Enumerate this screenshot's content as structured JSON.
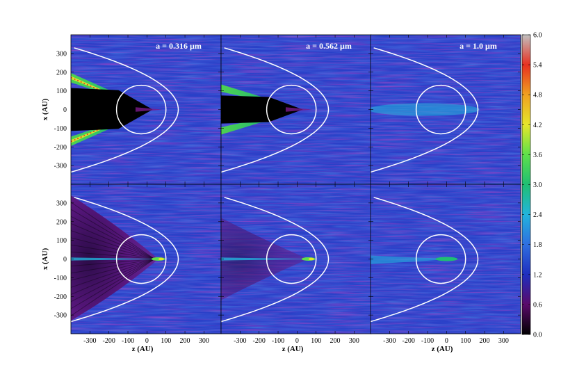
{
  "chart_data": {
    "type": "heatmap",
    "layout": "2 rows x 3 columns",
    "xlabel": "z (AU)",
    "ylabel": "x (AU)",
    "xlim": [
      -400,
      390
    ],
    "ylim": [
      -400,
      400
    ],
    "x_ticks": [
      -300,
      -200,
      -100,
      0,
      100,
      200,
      300
    ],
    "y_ticks": [
      300,
      200,
      100,
      0,
      -100,
      -200,
      -300
    ],
    "colorbar": {
      "min": 0.0,
      "max": 6.0,
      "ticks": [
        "6.0",
        "5.4",
        "4.8",
        "4.2",
        "3.6",
        "3.0",
        "2.4",
        "1.8",
        "1.2",
        "0.6",
        "0.0"
      ],
      "colors": [
        "#000000",
        "#5a0a6a",
        "#1f2fbf",
        "#2f6fe0",
        "#22b4dd",
        "#1fbf73",
        "#5ee04a",
        "#e6e62a",
        "#f0a020",
        "#e83020",
        "#c0c0c0"
      ]
    },
    "column_titles": [
      "a = 0.316 μm",
      "a = 0.562 μm",
      "a = 1.0 μm"
    ],
    "inner_circle_radius_au": 130,
    "inner_circle_center_z_au": -30,
    "panels": [
      {
        "row": 0,
        "col": 0,
        "shadow": "black-wedge",
        "wings": "strong"
      },
      {
        "row": 0,
        "col": 1,
        "shadow": "black-wedge",
        "wings": "medium"
      },
      {
        "row": 0,
        "col": 2,
        "shadow": "none",
        "wings": "faint"
      },
      {
        "row": 1,
        "col": 0,
        "shadow": "purple-cavity",
        "wings": "none"
      },
      {
        "row": 1,
        "col": 1,
        "shadow": "purple-cavity",
        "wings": "none"
      },
      {
        "row": 1,
        "col": 2,
        "shadow": "none",
        "wings": "none"
      }
    ]
  }
}
